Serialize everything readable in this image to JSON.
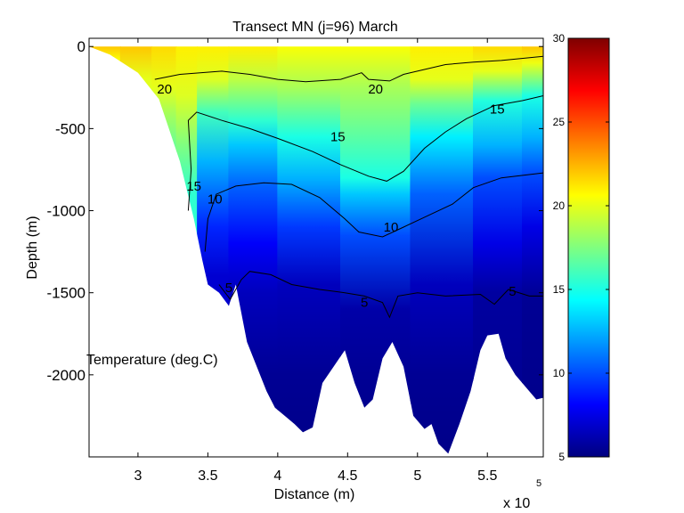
{
  "chart_data": {
    "type": "heatmap",
    "title": "Transect MN  (j=96)  March",
    "xlabel": "Distance (m)",
    "ylabel": "Depth (m)",
    "x_multiplier_label": "x 10",
    "x_multiplier_exponent": "5",
    "annotation": "Temperature (deg.C)",
    "xlim": [
      265000,
      590000
    ],
    "ylim": [
      -2500,
      50
    ],
    "x_ticks": [
      {
        "value": 300000,
        "label": "3"
      },
      {
        "value": 350000,
        "label": "3.5"
      },
      {
        "value": 400000,
        "label": "4"
      },
      {
        "value": 450000,
        "label": "4.5"
      },
      {
        "value": 500000,
        "label": "5"
      },
      {
        "value": 550000,
        "label": "5.5"
      }
    ],
    "y_ticks": [
      {
        "value": 0,
        "label": "0"
      },
      {
        "value": -500,
        "label": "-500"
      },
      {
        "value": -1000,
        "label": "-1000"
      },
      {
        "value": -1500,
        "label": "-1500"
      },
      {
        "value": -2000,
        "label": "-2000"
      }
    ],
    "colorbar": {
      "colormap": "jet",
      "range": [
        5,
        30
      ],
      "ticks": [
        {
          "value": 5,
          "label": "5"
        },
        {
          "value": 10,
          "label": "10"
        },
        {
          "value": 15,
          "label": "15"
        },
        {
          "value": 20,
          "label": "20"
        },
        {
          "value": 25,
          "label": "25"
        },
        {
          "value": 30,
          "label": "30"
        }
      ]
    },
    "bottom_profile": [
      [
        265000,
        0
      ],
      [
        280000,
        -50
      ],
      [
        300000,
        -160
      ],
      [
        315000,
        -320
      ],
      [
        330000,
        -700
      ],
      [
        340000,
        -1050
      ],
      [
        346000,
        -1300
      ],
      [
        350000,
        -1450
      ],
      [
        358000,
        -1500
      ],
      [
        365000,
        -1580
      ],
      [
        370000,
        -1450
      ],
      [
        378000,
        -1800
      ],
      [
        385000,
        -1950
      ],
      [
        392000,
        -2100
      ],
      [
        398000,
        -2200
      ],
      [
        405000,
        -2250
      ],
      [
        412000,
        -2300
      ],
      [
        418000,
        -2350
      ],
      [
        425000,
        -2320
      ],
      [
        432000,
        -2050
      ],
      [
        440000,
        -1950
      ],
      [
        448000,
        -1850
      ],
      [
        455000,
        -2050
      ],
      [
        462000,
        -2200
      ],
      [
        468000,
        -2150
      ],
      [
        475000,
        -1900
      ],
      [
        482000,
        -1800
      ],
      [
        490000,
        -1950
      ],
      [
        497000,
        -2250
      ],
      [
        505000,
        -2330
      ],
      [
        510000,
        -2300
      ],
      [
        515000,
        -2420
      ],
      [
        522000,
        -2480
      ],
      [
        530000,
        -2300
      ],
      [
        538000,
        -2100
      ],
      [
        545000,
        -1850
      ],
      [
        550000,
        -1760
      ],
      [
        558000,
        -1750
      ],
      [
        563000,
        -1900
      ],
      [
        570000,
        -2000
      ],
      [
        578000,
        -2080
      ],
      [
        585000,
        -2150
      ],
      [
        590000,
        -2140
      ]
    ],
    "field_profiles": [
      {
        "x": 275000,
        "points": [
          [
            0,
            22
          ],
          [
            -80,
            20.5
          ]
        ]
      },
      {
        "x": 300000,
        "points": [
          [
            0,
            22
          ],
          [
            -200,
            20
          ],
          [
            -350,
            19.5
          ]
        ]
      },
      {
        "x": 320000,
        "points": [
          [
            0,
            21.5
          ],
          [
            -250,
            20
          ],
          [
            -400,
            18.5
          ],
          [
            -600,
            17
          ]
        ]
      },
      {
        "x": 335000,
        "points": [
          [
            0,
            21
          ],
          [
            -300,
            19.8
          ],
          [
            -600,
            17.5
          ],
          [
            -900,
            15.5
          ]
        ]
      },
      {
        "x": 350000,
        "points": [
          [
            0,
            21
          ],
          [
            -200,
            19.8
          ],
          [
            -400,
            16
          ],
          [
            -700,
            12.5
          ],
          [
            -1100,
            9
          ],
          [
            -1400,
            7
          ]
        ]
      },
      {
        "x": 380000,
        "points": [
          [
            0,
            21
          ],
          [
            -200,
            19
          ],
          [
            -450,
            15.5
          ],
          [
            -600,
            13
          ],
          [
            -850,
            10.5
          ],
          [
            -1200,
            8
          ],
          [
            -1500,
            6.5
          ],
          [
            -2000,
            5.5
          ],
          [
            -2500,
            5.2
          ]
        ]
      },
      {
        "x": 420000,
        "points": [
          [
            0,
            20.5
          ],
          [
            -250,
            18.5
          ],
          [
            -550,
            15
          ],
          [
            -800,
            12.5
          ],
          [
            -1100,
            9.5
          ],
          [
            -1450,
            6.5
          ],
          [
            -2000,
            5.5
          ],
          [
            -2500,
            5.2
          ]
        ]
      },
      {
        "x": 470000,
        "points": [
          [
            0,
            20.5
          ],
          [
            -250,
            18.5
          ],
          [
            -800,
            15
          ],
          [
            -900,
            13
          ],
          [
            -1150,
            10
          ],
          [
            -1600,
            6
          ],
          [
            -2000,
            5.5
          ],
          [
            -2500,
            5.2
          ]
        ]
      },
      {
        "x": 520000,
        "points": [
          [
            0,
            21
          ],
          [
            -200,
            20
          ],
          [
            -350,
            17
          ],
          [
            -550,
            14
          ],
          [
            -900,
            10.5
          ],
          [
            -1450,
            6.5
          ],
          [
            -2000,
            5.5
          ],
          [
            -2500,
            5.2
          ]
        ]
      },
      {
        "x": 560000,
        "points": [
          [
            0,
            21.5
          ],
          [
            -150,
            20
          ],
          [
            -330,
            15.2
          ],
          [
            -600,
            12.5
          ],
          [
            -800,
            10
          ],
          [
            -1200,
            7.5
          ],
          [
            -1500,
            5.8
          ],
          [
            -2500,
            5.2
          ]
        ]
      },
      {
        "x": 590000,
        "points": [
          [
            0,
            22
          ],
          [
            -100,
            20.2
          ],
          [
            -300,
            15
          ],
          [
            -550,
            12.5
          ],
          [
            -770,
            10
          ],
          [
            -1100,
            7.5
          ],
          [
            -1520,
            5.5
          ],
          [
            -2500,
            5.2
          ]
        ]
      }
    ],
    "contours": [
      {
        "level": 20,
        "label_positions": [
          [
            319000,
            -260
          ],
          [
            470000,
            -260
          ]
        ],
        "labels": [
          "20",
          "20"
        ],
        "points": [
          [
            312000,
            -200
          ],
          [
            330000,
            -170
          ],
          [
            360000,
            -150
          ],
          [
            380000,
            -170
          ],
          [
            400000,
            -200
          ],
          [
            420000,
            -215
          ],
          [
            445000,
            -200
          ],
          [
            460000,
            -160
          ],
          [
            465000,
            -200
          ],
          [
            480000,
            -210
          ],
          [
            490000,
            -170
          ],
          [
            505000,
            -140
          ],
          [
            520000,
            -110
          ],
          [
            540000,
            -95
          ],
          [
            560000,
            -85
          ],
          [
            590000,
            -60
          ]
        ]
      },
      {
        "level": 15,
        "label_positions": [
          [
            340000,
            -850
          ],
          [
            443000,
            -550
          ],
          [
            557000,
            -380
          ]
        ],
        "labels": [
          "15",
          "15",
          "15"
        ],
        "points": [
          [
            336000,
            -1000
          ],
          [
            338000,
            -750
          ],
          [
            336000,
            -450
          ],
          [
            342000,
            -400
          ],
          [
            360000,
            -450
          ],
          [
            380000,
            -500
          ],
          [
            400000,
            -560
          ],
          [
            425000,
            -640
          ],
          [
            445000,
            -720
          ],
          [
            465000,
            -790
          ],
          [
            478000,
            -820
          ],
          [
            490000,
            -760
          ],
          [
            505000,
            -620
          ],
          [
            520000,
            -520
          ],
          [
            535000,
            -440
          ],
          [
            555000,
            -360
          ],
          [
            575000,
            -330
          ],
          [
            590000,
            -300
          ]
        ]
      },
      {
        "level": 10,
        "label_positions": [
          [
            355000,
            -930
          ],
          [
            481000,
            -1100
          ]
        ],
        "labels": [
          "10",
          "10"
        ],
        "points": [
          [
            348000,
            -1250
          ],
          [
            350000,
            -1050
          ],
          [
            356000,
            -900
          ],
          [
            370000,
            -850
          ],
          [
            390000,
            -830
          ],
          [
            410000,
            -840
          ],
          [
            430000,
            -920
          ],
          [
            448000,
            -1050
          ],
          [
            458000,
            -1130
          ],
          [
            475000,
            -1160
          ],
          [
            490000,
            -1100
          ],
          [
            505000,
            -1040
          ],
          [
            525000,
            -960
          ],
          [
            540000,
            -860
          ],
          [
            560000,
            -800
          ],
          [
            590000,
            -770
          ]
        ]
      },
      {
        "level": 5,
        "label_positions": [
          [
            365000,
            -1470
          ],
          [
            462000,
            -1560
          ],
          [
            568000,
            -1490
          ]
        ],
        "labels": [
          "5",
          "5",
          "5"
        ],
        "points": [
          [
            358000,
            -1450
          ],
          [
            366000,
            -1540
          ],
          [
            374000,
            -1420
          ],
          [
            380000,
            -1370
          ],
          [
            395000,
            -1390
          ],
          [
            410000,
            -1450
          ],
          [
            430000,
            -1480
          ],
          [
            448000,
            -1500
          ],
          [
            462000,
            -1520
          ],
          [
            475000,
            -1560
          ],
          [
            480000,
            -1650
          ],
          [
            486000,
            -1520
          ],
          [
            500000,
            -1500
          ],
          [
            520000,
            -1520
          ],
          [
            545000,
            -1510
          ],
          [
            555000,
            -1570
          ],
          [
            565000,
            -1480
          ],
          [
            580000,
            -1520
          ],
          [
            590000,
            -1520
          ]
        ]
      }
    ]
  }
}
